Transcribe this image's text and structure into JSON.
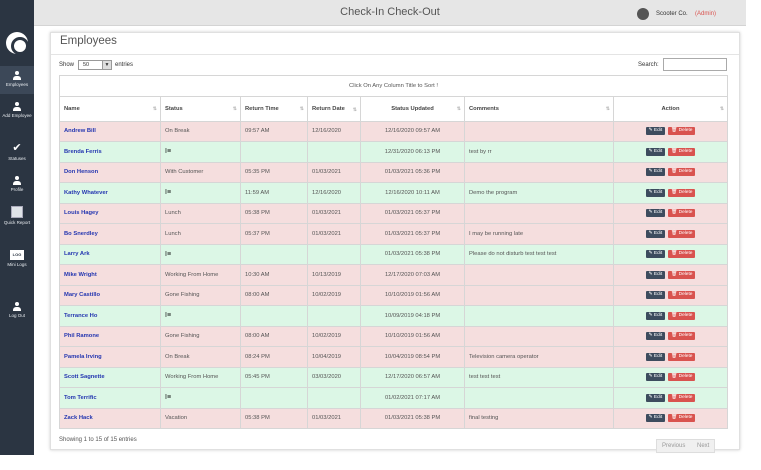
{
  "app": {
    "title": "Check-In Check-Out",
    "company": "Scooter Co.",
    "role": "(Admin)"
  },
  "sidebar": {
    "items": [
      {
        "label": "Employees",
        "icon": "person-icon"
      },
      {
        "label": "Add Employee",
        "icon": "person-add-icon"
      },
      {
        "label": "Statuses",
        "icon": "check-icon"
      },
      {
        "label": "Profile",
        "icon": "person-icon"
      },
      {
        "label": "Quick Report",
        "icon": "report-icon"
      },
      {
        "label": "Mini Logs",
        "icon": "log-icon"
      },
      {
        "label": "Log Out",
        "icon": "person-icon"
      }
    ]
  },
  "page": {
    "title": "Employees",
    "show_label": "Show",
    "page_length": "50",
    "entries_label": "entries",
    "search_label": "Search:",
    "search_value": "",
    "sort_hint": "Click On Any Column Title to Sort !",
    "info": "Showing 1 to 15 of 15 entries",
    "prev_label": "Previous",
    "next_label": "Next"
  },
  "table": {
    "columns": [
      "Name",
      "Status",
      "Return Time",
      "Return Date",
      "Status Updated",
      "Comments",
      "Action"
    ],
    "edit_label": "Edit",
    "delete_label": "Delete",
    "rows": [
      {
        "name": "Andrew  Bill",
        "status": "On Break",
        "return_time": "09:57 AM",
        "return_date": "12/16/2020",
        "updated": "12/16/2020 09:57 AM",
        "comments": "",
        "tone": "red"
      },
      {
        "name": "Brenda Ferris",
        "status": "I≡",
        "return_time": "",
        "return_date": "",
        "updated": "12/31/2020 06:13 PM",
        "comments": "test by rr",
        "tone": "green"
      },
      {
        "name": "Don Henson",
        "status": "With Customer",
        "return_time": "05:35 PM",
        "return_date": "01/03/2021",
        "updated": "01/03/2021 05:36 PM",
        "comments": "",
        "tone": "red"
      },
      {
        "name": "Kathy Whatever",
        "status": "I≡",
        "return_time": "11:59 AM",
        "return_date": "12/16/2020",
        "updated": "12/16/2020 10:11 AM",
        "comments": "Demo the program",
        "tone": "green"
      },
      {
        "name": "Louis Hagey",
        "status": "Lunch",
        "return_time": "05:38 PM",
        "return_date": "01/03/2021",
        "updated": "01/03/2021 05:37 PM",
        "comments": "",
        "tone": "red"
      },
      {
        "name": "Bo Snerdley",
        "status": "Lunch",
        "return_time": "05:37 PM",
        "return_date": "01/03/2021",
        "updated": "01/03/2021 05:37 PM",
        "comments": "I may be running late",
        "tone": "red"
      },
      {
        "name": "Larry Ark",
        "status": "I≡",
        "return_time": "",
        "return_date": "",
        "updated": "01/03/2021 05:38 PM",
        "comments": "Please do not disturb  test test test",
        "tone": "green"
      },
      {
        "name": "Mike Wright",
        "status": "Working From Home",
        "return_time": "10:30 AM",
        "return_date": "10/13/2019",
        "updated": "12/17/2020 07:03 AM",
        "comments": "",
        "tone": "red"
      },
      {
        "name": "Mary Castillo",
        "status": "Gone Fishing",
        "return_time": "08:00 AM",
        "return_date": "10/02/2019",
        "updated": "10/10/2019 01:56 AM",
        "comments": "",
        "tone": "red"
      },
      {
        "name": "Terrance Ho",
        "status": "I≡",
        "return_time": "",
        "return_date": "",
        "updated": "10/09/2019 04:18 PM",
        "comments": "",
        "tone": "green"
      },
      {
        "name": "Phil Ramone",
        "status": "Gone Fishing",
        "return_time": "08:00 AM",
        "return_date": "10/02/2019",
        "updated": "10/10/2019 01:56 AM",
        "comments": "",
        "tone": "red"
      },
      {
        "name": "Pamela Irving",
        "status": "On Break",
        "return_time": "08:24 PM",
        "return_date": "10/04/2019",
        "updated": "10/04/2019 08:54 PM",
        "comments": "Television camera operator",
        "tone": "red"
      },
      {
        "name": "Scott Sagnette",
        "status": "Working From Home",
        "return_time": "05:45 PM",
        "return_date": "03/03/2020",
        "updated": "12/17/2020 06:57 AM",
        "comments": "test test test",
        "tone": "green"
      },
      {
        "name": "Tom Terrific",
        "status": "I≡",
        "return_time": "",
        "return_date": "",
        "updated": "01/02/2021 07:17 AM",
        "comments": "",
        "tone": "green"
      },
      {
        "name": "Zack Hack",
        "status": "Vacation",
        "return_time": "05:38 PM",
        "return_date": "01/03/2021",
        "updated": "01/03/2021 05:38 PM",
        "comments": "final testing",
        "tone": "red"
      }
    ]
  }
}
